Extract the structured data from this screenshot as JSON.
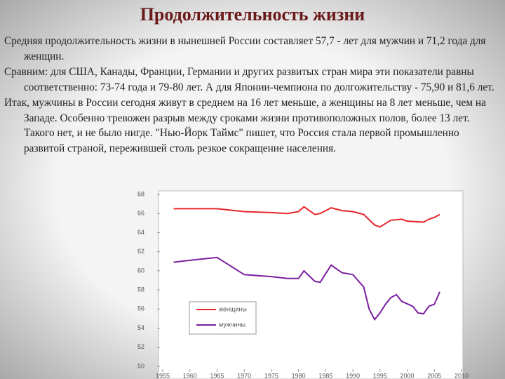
{
  "slide": {
    "title": "Продолжительность жизни",
    "paragraphs": [
      "Средняя продолжительность жизни в нынешней России составляет 57,7 - лет для мужчин и 71,2 года для женщин.",
      "Сравним: для США, Канады, Франции, Германии и других развитых стран мира эти показатели равны соответственно: 73-74 года и 79-80 лет. А для Японии-чемпиона по долгожительству - 75,90 и 81,6 лет.",
      "Итак, мужчины в России сегодня живут в среднем на 16 лет меньше, а женщины на 8 лет меньше, чем на Западе. Особенно тревожен разрыв между сроками жизни противоположных полов, более 13 лет. Такого нет, и не было нигде. \"Нью-Йорк Таймс\" пишет, что Россия стала первой промышленно развитой страной, пережившей столь резкое сокращение населения."
    ]
  },
  "chart_data": {
    "type": "line",
    "series": [
      {
        "name": "женщины",
        "color": "#e8252a",
        "x": [
          1957,
          1960,
          1965,
          1970,
          1975,
          1978,
          1980,
          1981,
          1983,
          1984,
          1986,
          1988,
          1990,
          1992,
          1994,
          1995,
          1997,
          1999,
          2000,
          2003,
          2004,
          2005,
          2006
        ],
        "values": [
          66.5,
          66.5,
          66.5,
          66.2,
          66.1,
          66.0,
          66.2,
          66.7,
          65.9,
          66.0,
          66.6,
          66.3,
          66.2,
          65.9,
          64.8,
          64.6,
          65.3,
          65.4,
          65.2,
          65.1,
          65.4,
          65.6,
          65.9
        ]
      },
      {
        "name": "мужчины",
        "color": "#7b1fa0",
        "x": [
          1957,
          1960,
          1965,
          1970,
          1975,
          1978,
          1980,
          1981,
          1983,
          1984,
          1986,
          1988,
          1990,
          1992,
          1993,
          1994,
          1995,
          1996,
          1997,
          1998,
          1999,
          2001,
          2002,
          2003,
          2004,
          2005,
          2006
        ],
        "values": [
          60.9,
          61.1,
          61.4,
          59.6,
          59.4,
          59.2,
          59.2,
          60.0,
          58.9,
          58.8,
          60.6,
          59.8,
          59.6,
          58.3,
          56.0,
          54.9,
          55.6,
          56.5,
          57.2,
          57.5,
          56.8,
          56.3,
          55.6,
          55.5,
          56.3,
          56.5,
          57.8
        ]
      }
    ],
    "xlim": [
      1955,
      2010
    ],
    "xticks": [
      1955,
      1960,
      1965,
      1970,
      1975,
      1980,
      1985,
      1990,
      1995,
      2000,
      2005,
      2010
    ],
    "ylim": [
      50,
      68
    ],
    "yticks": [
      50,
      52,
      54,
      56,
      58,
      60,
      62,
      64,
      66,
      68
    ]
  }
}
